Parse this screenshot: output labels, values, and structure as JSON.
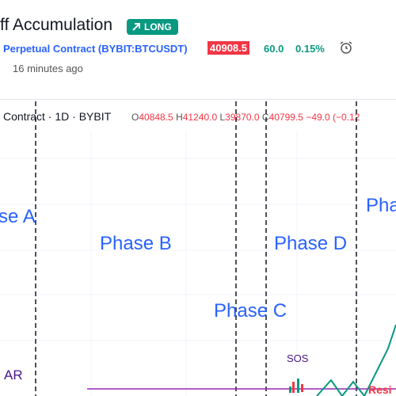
{
  "header": {
    "title": "ff Accumulation",
    "badge": "LONG",
    "symbol": "Perpetual Contract (BYBIT:BTCUSDT)",
    "price": "40908.5",
    "change": "60.0",
    "change_pct": "0.15%",
    "time": "16 minutes ago"
  },
  "legend": {
    "symbol": "Contract · 1D · BYBIT",
    "open_label": "O",
    "open": "40848.5",
    "high_label": "H",
    "high": "41240.0",
    "low_label": "L",
    "low": "39870.0",
    "close_label": "C",
    "close": "40799.5",
    "change": "−49.0 (−0.12"
  },
  "annotations": [
    "se A",
    "Phase B",
    "Phase D",
    "Phase C",
    "Pha",
    "AR",
    "SOS",
    "Resi"
  ]
}
